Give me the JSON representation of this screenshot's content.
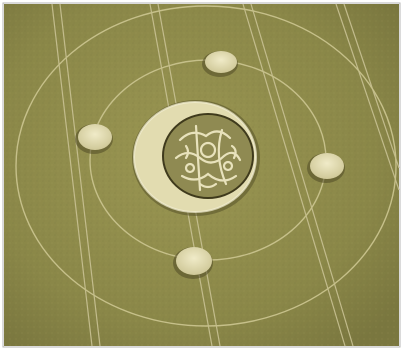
{
  "image": {
    "subject": "crop-circle-aerial-photo",
    "colors": {
      "field": "#8a8748",
      "field_light": "#a4a05c",
      "field_dark": "#6f6c38",
      "flattened": "#e2dcb0",
      "ring_line": "#c6c08a",
      "tramline": "#c9c294",
      "shadow": "#4a4422",
      "border": "#b5b5b5"
    }
  }
}
